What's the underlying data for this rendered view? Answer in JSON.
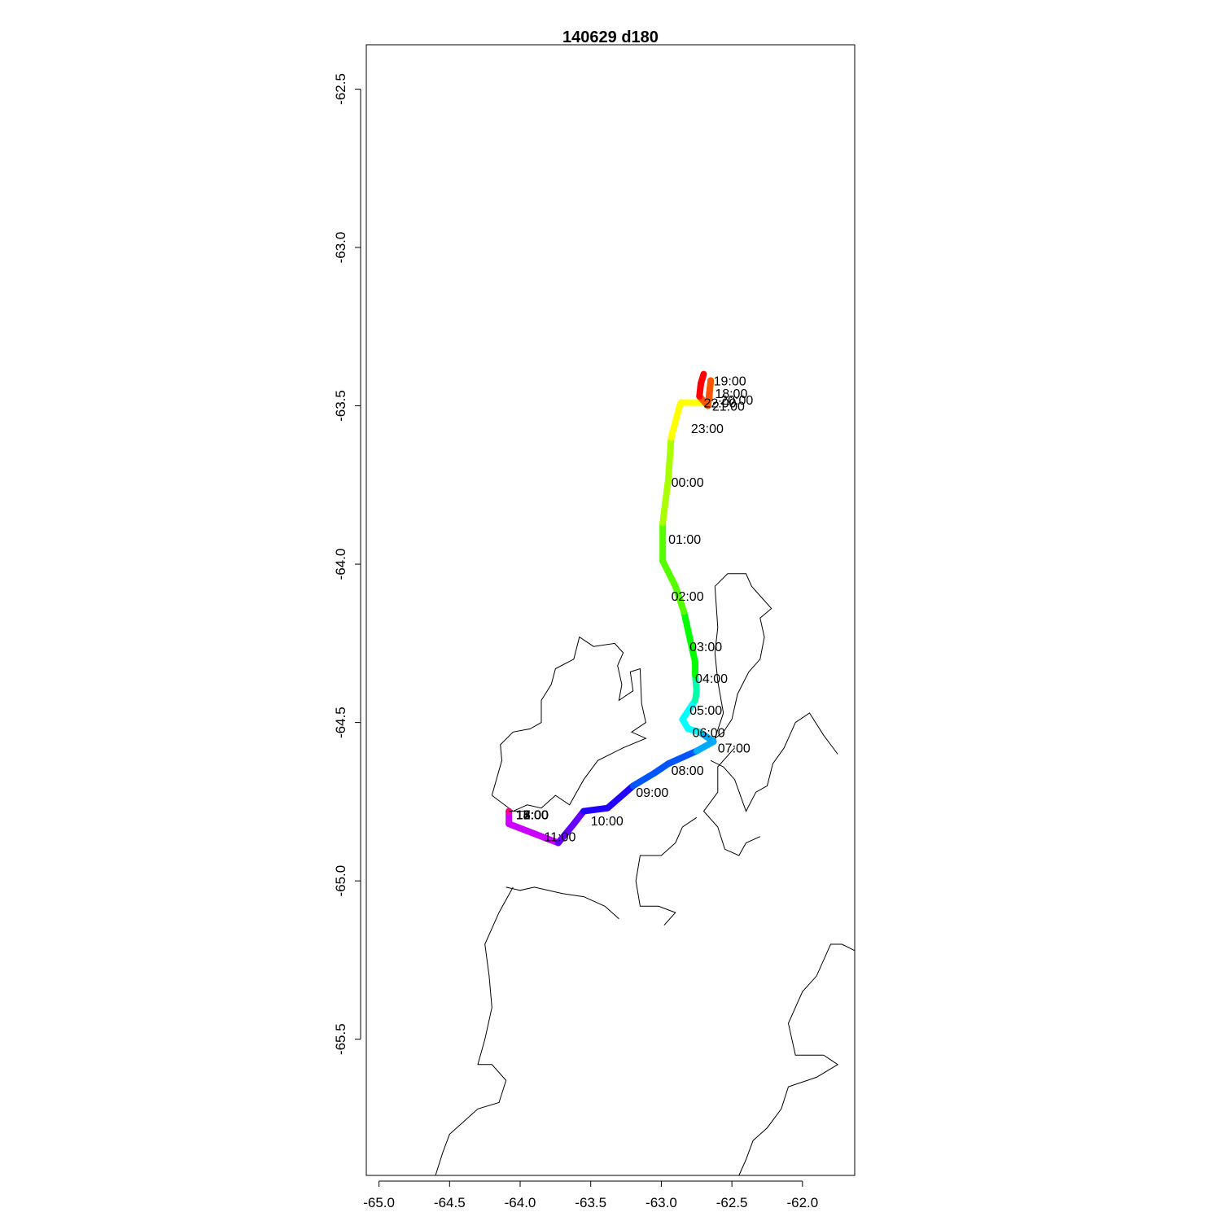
{
  "title": "140629   d180",
  "chart_data": {
    "type": "map-track",
    "title": "140629   d180",
    "xlim": [
      -65.09,
      -61.63
    ],
    "ylim": [
      -65.93,
      -62.36
    ],
    "x_ticks": [
      -65.0,
      -64.5,
      -64.0,
      -63.5,
      -63.0,
      -62.5,
      -62.0
    ],
    "x_tick_labels": [
      "-65.0",
      "-64.5",
      "-64.0",
      "-63.5",
      "-63.0",
      "-62.5",
      "-62.0"
    ],
    "y_ticks": [
      -62.5,
      -63.0,
      -63.5,
      -64.0,
      -64.5,
      -65.0,
      -65.5
    ],
    "y_tick_labels": [
      "-62.5",
      "-63.0",
      "-63.5",
      "-64.0",
      "-64.5",
      "-65.0",
      "-65.5"
    ],
    "track": [
      [
        -64.08,
        -64.78
      ],
      [
        -64.08,
        -64.82
      ],
      [
        -63.73,
        -64.88
      ],
      [
        -63.62,
        -64.82
      ],
      [
        -63.55,
        -64.78
      ],
      [
        -63.38,
        -64.77
      ],
      [
        -63.2,
        -64.7
      ],
      [
        -63.05,
        -64.66
      ],
      [
        -62.95,
        -64.63
      ],
      [
        -62.75,
        -64.59
      ],
      [
        -62.63,
        -64.56
      ],
      [
        -62.73,
        -64.53
      ],
      [
        -62.81,
        -64.52
      ],
      [
        -62.85,
        -64.49
      ],
      [
        -62.76,
        -64.43
      ],
      [
        -62.75,
        -64.4
      ],
      [
        -62.76,
        -64.35
      ],
      [
        -62.76,
        -64.31
      ],
      [
        -62.84,
        -64.15
      ],
      [
        -62.9,
        -64.07
      ],
      [
        -62.99,
        -63.99
      ],
      [
        -62.99,
        -63.87
      ],
      [
        -62.95,
        -63.73
      ],
      [
        -62.93,
        -63.6
      ],
      [
        -62.87,
        -63.5
      ],
      [
        -62.86,
        -63.49
      ],
      [
        -62.69,
        -63.49
      ],
      [
        -62.66,
        -63.48
      ],
      [
        -62.65,
        -63.42
      ],
      [
        -62.67,
        -63.5
      ],
      [
        -62.73,
        -63.47
      ],
      [
        -62.72,
        -63.43
      ],
      [
        -62.7,
        -63.4
      ]
    ],
    "track_colors": [
      "#ff0000",
      "#ff5500",
      "#ffaa00",
      "#ffff00",
      "#aaff00",
      "#55ff00",
      "#00ff00",
      "#00ffaa",
      "#00ffff",
      "#00aaff",
      "#0055ff",
      "#2200ff",
      "#6600ff",
      "#cc00ff"
    ],
    "hour_labels": [
      {
        "text": "18:00",
        "x": -62.62,
        "y": -63.46
      },
      {
        "text": "19:00",
        "x": -62.63,
        "y": -63.42
      },
      {
        "text": "20:00",
        "x": -62.58,
        "y": -63.48
      },
      {
        "text": "21:00",
        "x": -62.64,
        "y": -63.5
      },
      {
        "text": "22:00",
        "x": -62.7,
        "y": -63.49
      },
      {
        "text": "23:00",
        "x": -62.79,
        "y": -63.57
      },
      {
        "text": "00:00",
        "x": -62.93,
        "y": -63.74
      },
      {
        "text": "01:00",
        "x": -62.95,
        "y": -63.92
      },
      {
        "text": "02:00",
        "x": -62.93,
        "y": -64.1
      },
      {
        "text": "03:00",
        "x": -62.8,
        "y": -64.26
      },
      {
        "text": "04:00",
        "x": -62.76,
        "y": -64.36
      },
      {
        "text": "05:00",
        "x": -62.8,
        "y": -64.46
      },
      {
        "text": "06:00",
        "x": -62.78,
        "y": -64.53
      },
      {
        "text": "07:00",
        "x": -62.6,
        "y": -64.58
      },
      {
        "text": "08:00",
        "x": -62.93,
        "y": -64.65
      },
      {
        "text": "09:00",
        "x": -63.18,
        "y": -64.72
      },
      {
        "text": "10:00",
        "x": -63.5,
        "y": -64.81
      },
      {
        "text": "11:00",
        "x": -63.83,
        "y": -64.86
      },
      {
        "text": "12:00",
        "x": -64.03,
        "y": -64.79
      },
      {
        "text": "13:00",
        "x": -64.03,
        "y": -64.79
      },
      {
        "text": "14:00",
        "x": -64.03,
        "y": -64.79
      },
      {
        "text": "15:00",
        "x": -64.03,
        "y": -64.79
      },
      {
        "text": "16:00",
        "x": -64.03,
        "y": -64.79
      },
      {
        "text": "17:00",
        "x": -64.03,
        "y": -64.79
      }
    ],
    "coastlines": [
      [
        [
          -64.2,
          -64.73
        ],
        [
          -64.13,
          -64.62
        ],
        [
          -64.14,
          -64.57
        ],
        [
          -64.05,
          -64.53
        ],
        [
          -63.93,
          -64.52
        ],
        [
          -63.85,
          -64.5
        ],
        [
          -63.85,
          -64.43
        ],
        [
          -63.78,
          -64.38
        ],
        [
          -63.75,
          -64.33
        ],
        [
          -63.62,
          -64.3
        ],
        [
          -63.58,
          -64.23
        ],
        [
          -63.48,
          -64.26
        ],
        [
          -63.33,
          -64.25
        ],
        [
          -63.27,
          -64.28
        ],
        [
          -63.31,
          -64.32
        ],
        [
          -63.28,
          -64.38
        ],
        [
          -63.3,
          -64.43
        ],
        [
          -63.2,
          -64.4
        ],
        [
          -63.22,
          -64.34
        ],
        [
          -63.15,
          -64.33
        ],
        [
          -63.14,
          -64.44
        ],
        [
          -63.11,
          -64.5
        ],
        [
          -63.21,
          -64.53
        ],
        [
          -63.11,
          -64.55
        ],
        [
          -63.27,
          -64.58
        ],
        [
          -63.45,
          -64.62
        ],
        [
          -63.55,
          -64.68
        ],
        [
          -63.65,
          -64.76
        ],
        [
          -63.75,
          -64.73
        ],
        [
          -63.85,
          -64.77
        ],
        [
          -63.95,
          -64.76
        ],
        [
          -64.05,
          -64.78
        ],
        [
          -64.2,
          -64.73
        ]
      ],
      [
        [
          -62.62,
          -64.07
        ],
        [
          -62.53,
          -64.03
        ],
        [
          -62.4,
          -64.03
        ],
        [
          -62.36,
          -64.07
        ],
        [
          -62.3,
          -64.1
        ],
        [
          -62.22,
          -64.14
        ],
        [
          -62.3,
          -64.17
        ],
        [
          -62.27,
          -64.23
        ],
        [
          -62.3,
          -64.3
        ],
        [
          -62.38,
          -64.34
        ],
        [
          -62.46,
          -64.41
        ],
        [
          -62.5,
          -64.49
        ],
        [
          -62.56,
          -64.53
        ],
        [
          -62.62,
          -64.55
        ],
        [
          -62.56,
          -64.47
        ],
        [
          -62.6,
          -64.37
        ],
        [
          -62.62,
          -64.28
        ],
        [
          -62.6,
          -64.2
        ],
        [
          -62.62,
          -64.07
        ]
      ],
      [
        [
          -62.65,
          -64.62
        ],
        [
          -62.56,
          -64.64
        ],
        [
          -62.48,
          -64.68
        ],
        [
          -62.44,
          -64.73
        ],
        [
          -62.4,
          -64.78
        ],
        [
          -62.33,
          -64.72
        ],
        [
          -62.25,
          -64.7
        ],
        [
          -62.21,
          -64.63
        ],
        [
          -62.13,
          -64.58
        ],
        [
          -62.1,
          -64.55
        ],
        [
          -62.05,
          -64.5
        ],
        [
          -61.95,
          -64.47
        ],
        [
          -61.85,
          -64.54
        ],
        [
          -61.75,
          -64.6
        ]
      ],
      [
        [
          -62.48,
          -64.58
        ],
        [
          -62.6,
          -64.64
        ],
        [
          -62.6,
          -64.72
        ],
        [
          -62.7,
          -64.78
        ],
        [
          -62.6,
          -64.83
        ],
        [
          -62.55,
          -64.9
        ],
        [
          -62.45,
          -64.92
        ],
        [
          -62.4,
          -64.88
        ],
        [
          -62.3,
          -64.86
        ]
      ],
      [
        [
          -62.75,
          -64.8
        ],
        [
          -62.85,
          -64.83
        ],
        [
          -62.9,
          -64.88
        ],
        [
          -63.0,
          -64.92
        ],
        [
          -63.15,
          -64.92
        ],
        [
          -63.18,
          -65.0
        ],
        [
          -63.15,
          -65.08
        ],
        [
          -63.02,
          -65.08
        ],
        [
          -62.9,
          -65.1
        ],
        [
          -62.98,
          -65.14
        ]
      ],
      [
        [
          -64.1,
          -65.02
        ],
        [
          -64.0,
          -65.03
        ],
        [
          -63.9,
          -65.02
        ],
        [
          -63.7,
          -65.04
        ],
        [
          -63.55,
          -65.05
        ],
        [
          -63.4,
          -65.08
        ],
        [
          -63.3,
          -65.12
        ]
      ],
      [
        [
          -64.05,
          -65.02
        ],
        [
          -64.15,
          -65.1
        ],
        [
          -64.25,
          -65.2
        ],
        [
          -64.22,
          -65.3
        ],
        [
          -64.2,
          -65.4
        ],
        [
          -64.25,
          -65.5
        ],
        [
          -64.3,
          -65.58
        ],
        [
          -64.2,
          -65.58
        ],
        [
          -64.1,
          -65.63
        ],
        [
          -64.15,
          -65.7
        ],
        [
          -64.3,
          -65.72
        ],
        [
          -64.4,
          -65.76
        ],
        [
          -64.5,
          -65.8
        ],
        [
          -64.55,
          -65.86
        ],
        [
          -64.6,
          -65.93
        ]
      ],
      [
        [
          -61.63,
          -65.22
        ],
        [
          -61.72,
          -65.2
        ],
        [
          -61.8,
          -65.2
        ],
        [
          -61.85,
          -65.25
        ],
        [
          -61.9,
          -65.3
        ],
        [
          -62.0,
          -65.35
        ],
        [
          -62.1,
          -65.45
        ],
        [
          -62.05,
          -65.55
        ],
        [
          -61.85,
          -65.55
        ],
        [
          -61.75,
          -65.58
        ],
        [
          -61.9,
          -65.62
        ],
        [
          -62.1,
          -65.65
        ],
        [
          -62.15,
          -65.72
        ],
        [
          -62.25,
          -65.78
        ],
        [
          -62.35,
          -65.82
        ],
        [
          -62.4,
          -65.88
        ],
        [
          -62.45,
          -65.93
        ]
      ]
    ]
  }
}
